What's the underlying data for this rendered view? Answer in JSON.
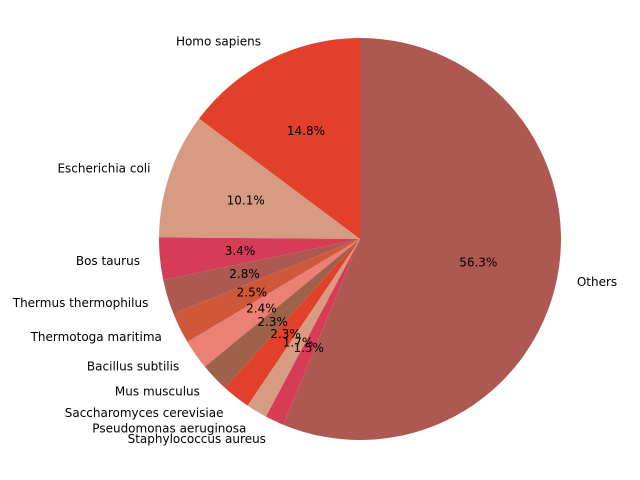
{
  "chart_data": {
    "type": "pie",
    "title": "",
    "start_angle_deg": 90,
    "direction": "counterclockwise",
    "slices": [
      {
        "label": "Homo sapiens",
        "value": 14.8,
        "pct_label": "14.8%",
        "color": "#e2402a"
      },
      {
        "label": "Escherichia coli",
        "value": 10.1,
        "pct_label": "10.1%",
        "color": "#d79b82"
      },
      {
        "label": "Bos taurus",
        "value": 3.4,
        "pct_label": "3.4%",
        "color": "#d63c55"
      },
      {
        "label": "Thermus thermophilus",
        "value": 2.8,
        "pct_label": "2.8%",
        "color": "#ae5852"
      },
      {
        "label": "Thermotoga maritima",
        "value": 2.5,
        "pct_label": "2.5%",
        "color": "#d0583a"
      },
      {
        "label": "Bacillus subtilis",
        "value": 2.4,
        "pct_label": "2.4%",
        "color": "#eb8075"
      },
      {
        "label": "Mus musculus",
        "value": 2.3,
        "pct_label": "2.3%",
        "color": "#9e6149"
      },
      {
        "label": "Saccharomyces cerevisiae",
        "value": 2.3,
        "pct_label": "2.3%",
        "color": "#e2402a"
      },
      {
        "label": "Pseudomonas aeruginosa",
        "value": 1.7,
        "pct_label": "1.7%",
        "color": "#d79b82"
      },
      {
        "label": "Staphylococcus aureus",
        "value": 1.5,
        "pct_label": "1.5%",
        "color": "#d63c55"
      },
      {
        "label": "Others",
        "value": 56.3,
        "pct_label": "56.3%",
        "color": "#ae5852"
      }
    ]
  }
}
